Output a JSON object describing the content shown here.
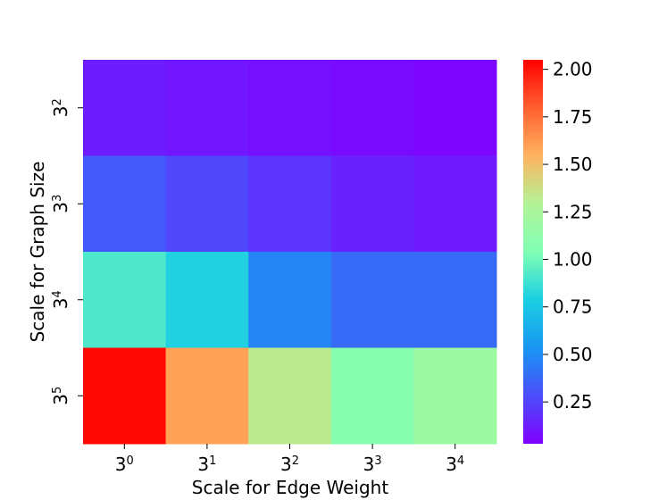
{
  "chart_data": {
    "type": "heatmap",
    "xlabel": "Scale for Edge Weight",
    "ylabel": "Scale for Graph Size",
    "x_categories": [
      {
        "base": "3",
        "exp": "0"
      },
      {
        "base": "3",
        "exp": "1"
      },
      {
        "base": "3",
        "exp": "2"
      },
      {
        "base": "3",
        "exp": "3"
      },
      {
        "base": "3",
        "exp": "4"
      }
    ],
    "y_categories": [
      {
        "base": "3",
        "exp": "2"
      },
      {
        "base": "3",
        "exp": "3"
      },
      {
        "base": "3",
        "exp": "4"
      },
      {
        "base": "3",
        "exp": "5"
      }
    ],
    "values": [
      [
        0.12,
        0.1,
        0.08,
        0.06,
        0.05
      ],
      [
        0.32,
        0.26,
        0.2,
        0.14,
        0.11
      ],
      [
        0.92,
        0.8,
        0.48,
        0.38,
        0.38
      ],
      [
        2.03,
        1.6,
        1.33,
        1.07,
        1.18
      ]
    ],
    "colorbar": {
      "min": 0.03,
      "max": 2.05,
      "ticks": [
        "0.25",
        "0.50",
        "0.75",
        "1.00",
        "1.25",
        "1.50",
        "1.75",
        "2.00"
      ],
      "colormap": "rainbow"
    }
  }
}
